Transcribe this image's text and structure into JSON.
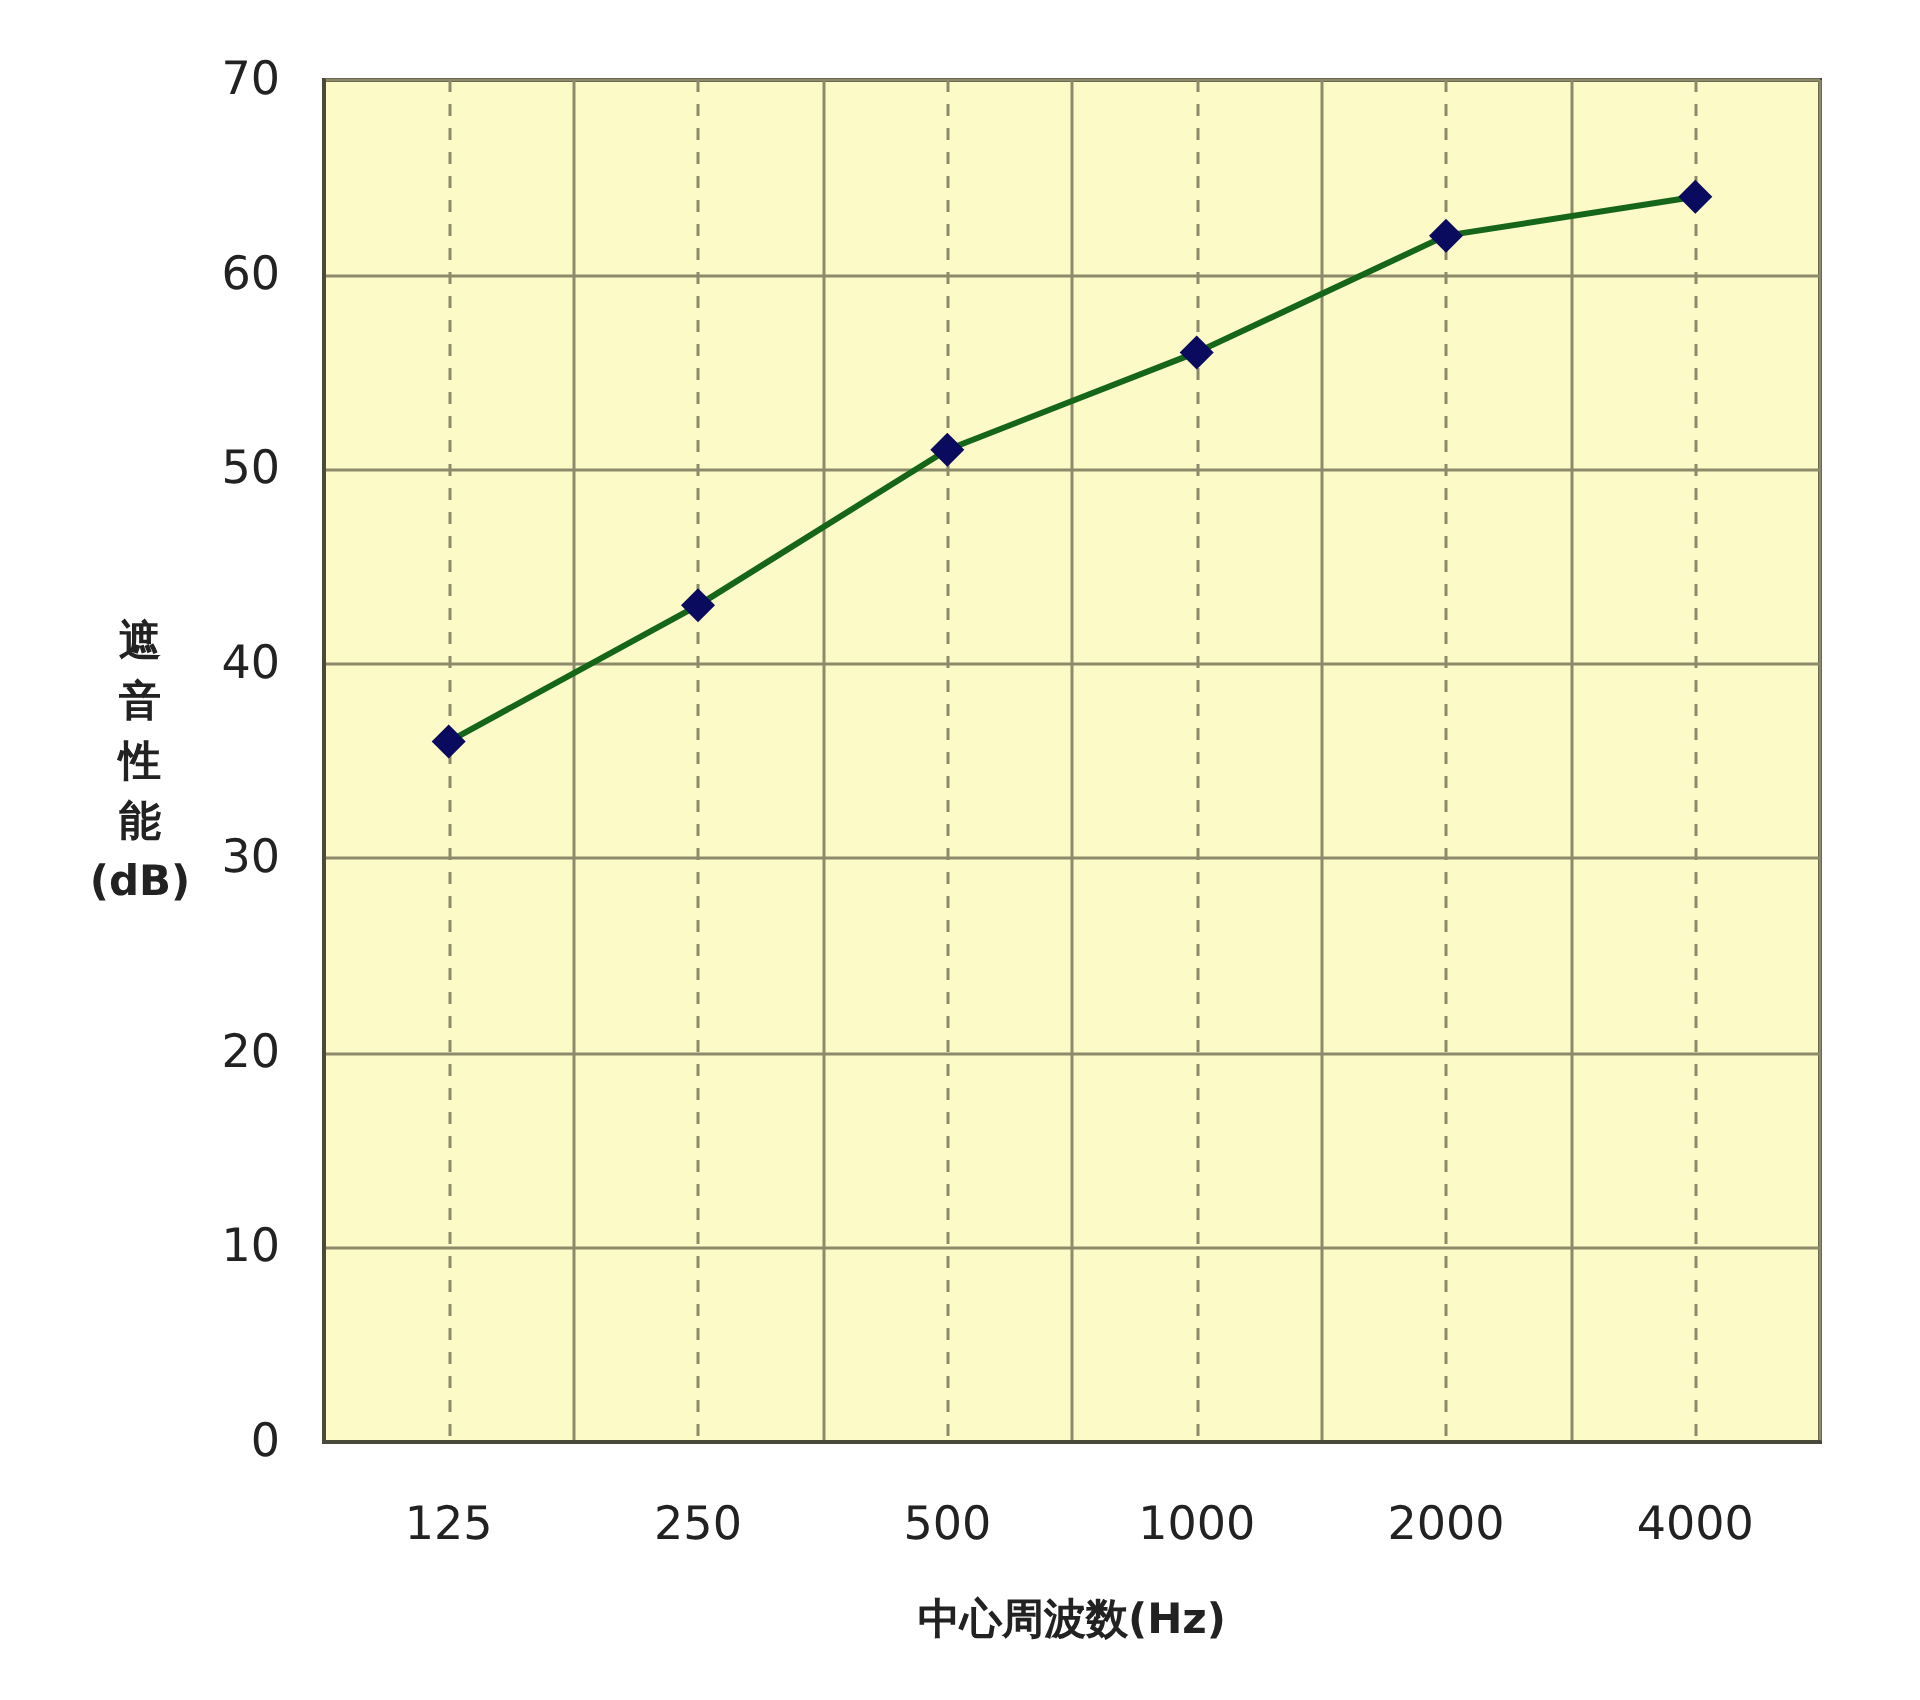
{
  "chart_data": {
    "type": "line",
    "xlabel": "中心周波数(Hz)",
    "ylabel": "遮音性能(dB)",
    "categories": [
      "125",
      "250",
      "500",
      "1000",
      "2000",
      "4000"
    ],
    "series": [
      {
        "color": "#16661a",
        "colors": [
          "#0a0a5e",
          "#0a0a5e",
          "#0a0a5e",
          "#0a0a5e",
          "#0a0a5e",
          "#0a0a5e"
        ],
        "values": [
          36,
          43,
          51,
          56,
          62,
          64
        ]
      }
    ],
    "ylim": [
      0,
      70
    ],
    "yticks": [
      0,
      10,
      20,
      30,
      40,
      50,
      60,
      70
    ],
    "grid": true,
    "marker": "diamond",
    "line_style": "solid"
  }
}
